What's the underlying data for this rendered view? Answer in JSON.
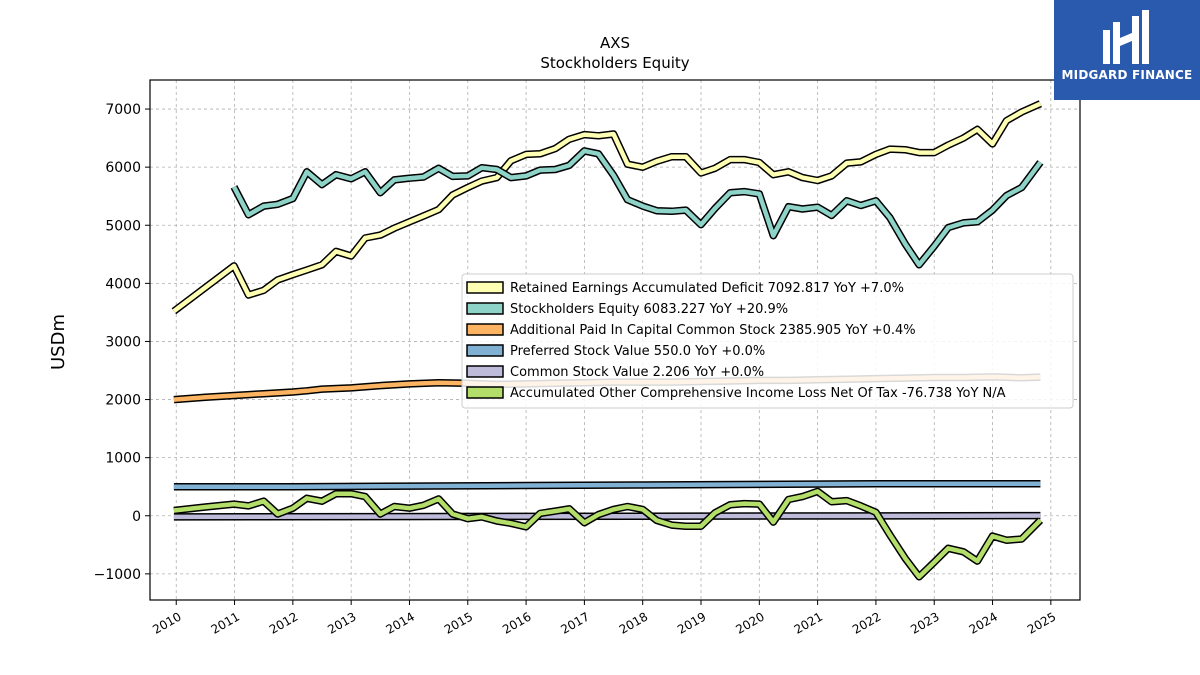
{
  "brand": {
    "name": "MIDGARD FINANCE"
  },
  "chart_data": {
    "type": "line",
    "title": "AXS",
    "subtitle": "Stockholders  Equity",
    "xlabel": "",
    "ylabel": "USDm",
    "xlim": [
      2009.55,
      2025.5
    ],
    "ylim": [
      -1450,
      7500
    ],
    "yticks": [
      -1000,
      0,
      1000,
      2000,
      3000,
      4000,
      5000,
      6000,
      7000
    ],
    "ytick_labels": [
      "−1000",
      "0",
      "1000",
      "2000",
      "3000",
      "4000",
      "5000",
      "6000",
      "7000"
    ],
    "xticks": [
      2010,
      2011,
      2012,
      2013,
      2014,
      2015,
      2016,
      2017,
      2018,
      2019,
      2020,
      2021,
      2022,
      2023,
      2024,
      2025
    ],
    "xtick_labels": [
      "2010",
      "2011",
      "2012",
      "2013",
      "2014",
      "2015",
      "2016",
      "2017",
      "2018",
      "2019",
      "2020",
      "2021",
      "2022",
      "2023",
      "2024",
      "2025"
    ],
    "grid": true,
    "legend_position": "center-right",
    "series": [
      {
        "name": "Retained Earnings Accumulated Deficit",
        "legend_label": "Retained Earnings Accumulated Deficit  7092.817 YoY +7.0%",
        "color": "#ffffb3",
        "points": [
          [
            2009.96,
            3520
          ],
          [
            2010.99,
            4300
          ],
          [
            2011.24,
            3800
          ],
          [
            2011.5,
            3880
          ],
          [
            2011.74,
            4060
          ],
          [
            2012.0,
            4150
          ],
          [
            2012.24,
            4230
          ],
          [
            2012.5,
            4320
          ],
          [
            2012.74,
            4550
          ],
          [
            2013.0,
            4470
          ],
          [
            2013.24,
            4780
          ],
          [
            2013.5,
            4830
          ],
          [
            2013.74,
            4950
          ],
          [
            2014.0,
            5060
          ],
          [
            2014.24,
            5160
          ],
          [
            2014.5,
            5270
          ],
          [
            2014.74,
            5520
          ],
          [
            2015.0,
            5650
          ],
          [
            2015.24,
            5760
          ],
          [
            2015.5,
            5820
          ],
          [
            2015.74,
            6110
          ],
          [
            2016.0,
            6220
          ],
          [
            2016.24,
            6230
          ],
          [
            2016.5,
            6320
          ],
          [
            2016.74,
            6480
          ],
          [
            2017.0,
            6560
          ],
          [
            2017.24,
            6540
          ],
          [
            2017.5,
            6570
          ],
          [
            2017.74,
            6050
          ],
          [
            2018.0,
            6000
          ],
          [
            2018.24,
            6100
          ],
          [
            2018.5,
            6180
          ],
          [
            2018.74,
            6180
          ],
          [
            2019.0,
            5900
          ],
          [
            2019.24,
            5980
          ],
          [
            2019.5,
            6130
          ],
          [
            2019.74,
            6130
          ],
          [
            2020.0,
            6080
          ],
          [
            2020.24,
            5870
          ],
          [
            2020.5,
            5920
          ],
          [
            2020.74,
            5820
          ],
          [
            2021.0,
            5770
          ],
          [
            2021.24,
            5850
          ],
          [
            2021.5,
            6070
          ],
          [
            2021.74,
            6090
          ],
          [
            2022.0,
            6220
          ],
          [
            2022.24,
            6310
          ],
          [
            2022.5,
            6300
          ],
          [
            2022.74,
            6250
          ],
          [
            2023.0,
            6250
          ],
          [
            2023.24,
            6380
          ],
          [
            2023.5,
            6500
          ],
          [
            2023.74,
            6650
          ],
          [
            2024.0,
            6400
          ],
          [
            2024.24,
            6800
          ],
          [
            2024.5,
            6950
          ],
          [
            2024.82,
            7092.817
          ]
        ]
      },
      {
        "name": "Stockholders Equity",
        "legend_label": "Stockholders Equity  6083.227 YoY +20.9%",
        "color": "#8dd3c7",
        "points": [
          [
            2010.99,
            5660
          ],
          [
            2011.24,
            5180
          ],
          [
            2011.5,
            5330
          ],
          [
            2011.74,
            5360
          ],
          [
            2012.0,
            5460
          ],
          [
            2012.24,
            5920
          ],
          [
            2012.5,
            5700
          ],
          [
            2012.74,
            5870
          ],
          [
            2013.0,
            5800
          ],
          [
            2013.24,
            5920
          ],
          [
            2013.5,
            5560
          ],
          [
            2013.74,
            5780
          ],
          [
            2014.0,
            5810
          ],
          [
            2014.24,
            5830
          ],
          [
            2014.5,
            5980
          ],
          [
            2014.74,
            5840
          ],
          [
            2015.0,
            5850
          ],
          [
            2015.24,
            5990
          ],
          [
            2015.5,
            5960
          ],
          [
            2015.74,
            5820
          ],
          [
            2016.0,
            5850
          ],
          [
            2016.24,
            5950
          ],
          [
            2016.5,
            5960
          ],
          [
            2016.74,
            6030
          ],
          [
            2017.0,
            6280
          ],
          [
            2017.24,
            6230
          ],
          [
            2017.5,
            5860
          ],
          [
            2017.74,
            5440
          ],
          [
            2018.0,
            5330
          ],
          [
            2018.24,
            5250
          ],
          [
            2018.5,
            5240
          ],
          [
            2018.74,
            5260
          ],
          [
            2019.0,
            5010
          ],
          [
            2019.24,
            5290
          ],
          [
            2019.5,
            5560
          ],
          [
            2019.74,
            5580
          ],
          [
            2020.0,
            5540
          ],
          [
            2020.24,
            4820
          ],
          [
            2020.5,
            5320
          ],
          [
            2020.74,
            5280
          ],
          [
            2021.0,
            5310
          ],
          [
            2021.24,
            5170
          ],
          [
            2021.5,
            5420
          ],
          [
            2021.74,
            5340
          ],
          [
            2022.0,
            5420
          ],
          [
            2022.24,
            5130
          ],
          [
            2022.5,
            4680
          ],
          [
            2022.74,
            4320
          ],
          [
            2023.0,
            4640
          ],
          [
            2023.24,
            4960
          ],
          [
            2023.5,
            5040
          ],
          [
            2023.74,
            5060
          ],
          [
            2024.0,
            5260
          ],
          [
            2024.24,
            5510
          ],
          [
            2024.5,
            5650
          ],
          [
            2024.82,
            6083.227
          ]
        ]
      },
      {
        "name": "Additional Paid In Capital Common Stock",
        "legend_label": "Additional Paid In Capital Common Stock  2385.905 YoY +0.4%",
        "color": "#fdb462",
        "points": [
          [
            2009.96,
            2000
          ],
          [
            2010.5,
            2040
          ],
          [
            2011.0,
            2070
          ],
          [
            2011.5,
            2100
          ],
          [
            2012.0,
            2130
          ],
          [
            2012.24,
            2150
          ],
          [
            2012.5,
            2180
          ],
          [
            2013.0,
            2200
          ],
          [
            2013.5,
            2240
          ],
          [
            2014.0,
            2270
          ],
          [
            2014.5,
            2290
          ],
          [
            2015.0,
            2280
          ],
          [
            2015.5,
            2260
          ],
          [
            2016.0,
            2270
          ],
          [
            2016.5,
            2280
          ],
          [
            2017.0,
            2290
          ],
          [
            2017.5,
            2300
          ],
          [
            2018.0,
            2300
          ],
          [
            2018.5,
            2300
          ],
          [
            2019.0,
            2310
          ],
          [
            2019.5,
            2320
          ],
          [
            2020.0,
            2330
          ],
          [
            2020.5,
            2330
          ],
          [
            2021.0,
            2340
          ],
          [
            2021.5,
            2350
          ],
          [
            2022.0,
            2360
          ],
          [
            2022.5,
            2370
          ],
          [
            2023.0,
            2380
          ],
          [
            2023.5,
            2380
          ],
          [
            2024.0,
            2390
          ],
          [
            2024.5,
            2375
          ],
          [
            2024.82,
            2385.905
          ]
        ]
      },
      {
        "name": "Preferred Stock Value",
        "legend_label": "Preferred Stock Value  550.0 YoY +0.0%",
        "color": "#80b1d3",
        "points": [
          [
            2009.96,
            500
          ],
          [
            2012.0,
            500
          ],
          [
            2014.0,
            510
          ],
          [
            2016.0,
            520
          ],
          [
            2018.0,
            530
          ],
          [
            2020.0,
            540
          ],
          [
            2022.0,
            550
          ],
          [
            2024.82,
            550.0
          ]
        ]
      },
      {
        "name": "Common Stock Value",
        "legend_label": "Common Stock Value  2.206 YoY +0.0%",
        "color": "#bebada",
        "points": [
          [
            2009.96,
            -20
          ],
          [
            2024.82,
            2.206
          ]
        ]
      },
      {
        "name": "Accumulated Other Comprehensive Income Loss Net Of Tax",
        "legend_label": "Accumulated Other Comprehensive Income Loss Net Of Tax  -76.738 YoY N/A",
        "color": "#b3de69",
        "points": [
          [
            2009.96,
            90
          ],
          [
            2010.5,
            150
          ],
          [
            2010.99,
            200
          ],
          [
            2011.24,
            170
          ],
          [
            2011.5,
            250
          ],
          [
            2011.74,
            30
          ],
          [
            2012.0,
            130
          ],
          [
            2012.24,
            300
          ],
          [
            2012.5,
            250
          ],
          [
            2012.74,
            380
          ],
          [
            2013.0,
            380
          ],
          [
            2013.24,
            330
          ],
          [
            2013.5,
            30
          ],
          [
            2013.74,
            160
          ],
          [
            2014.0,
            130
          ],
          [
            2014.24,
            180
          ],
          [
            2014.5,
            290
          ],
          [
            2014.74,
            30
          ],
          [
            2015.0,
            -50
          ],
          [
            2015.24,
            -20
          ],
          [
            2015.5,
            -90
          ],
          [
            2015.74,
            -130
          ],
          [
            2016.0,
            -190
          ],
          [
            2016.24,
            40
          ],
          [
            2016.5,
            80
          ],
          [
            2016.74,
            120
          ],
          [
            2017.0,
            -120
          ],
          [
            2017.24,
            20
          ],
          [
            2017.5,
            110
          ],
          [
            2017.74,
            160
          ],
          [
            2018.0,
            110
          ],
          [
            2018.24,
            -80
          ],
          [
            2018.5,
            -160
          ],
          [
            2018.74,
            -180
          ],
          [
            2019.0,
            -180
          ],
          [
            2019.24,
            50
          ],
          [
            2019.5,
            190
          ],
          [
            2019.74,
            210
          ],
          [
            2020.0,
            200
          ],
          [
            2020.24,
            -110
          ],
          [
            2020.5,
            280
          ],
          [
            2020.74,
            330
          ],
          [
            2021.0,
            420
          ],
          [
            2021.24,
            240
          ],
          [
            2021.5,
            260
          ],
          [
            2021.74,
            170
          ],
          [
            2022.0,
            60
          ],
          [
            2022.24,
            -330
          ],
          [
            2022.5,
            -730
          ],
          [
            2022.74,
            -1050
          ],
          [
            2023.0,
            -800
          ],
          [
            2023.24,
            -560
          ],
          [
            2023.5,
            -620
          ],
          [
            2023.74,
            -780
          ],
          [
            2024.0,
            -350
          ],
          [
            2024.24,
            -420
          ],
          [
            2024.5,
            -400
          ],
          [
            2024.82,
            -76.738
          ]
        ]
      }
    ]
  }
}
